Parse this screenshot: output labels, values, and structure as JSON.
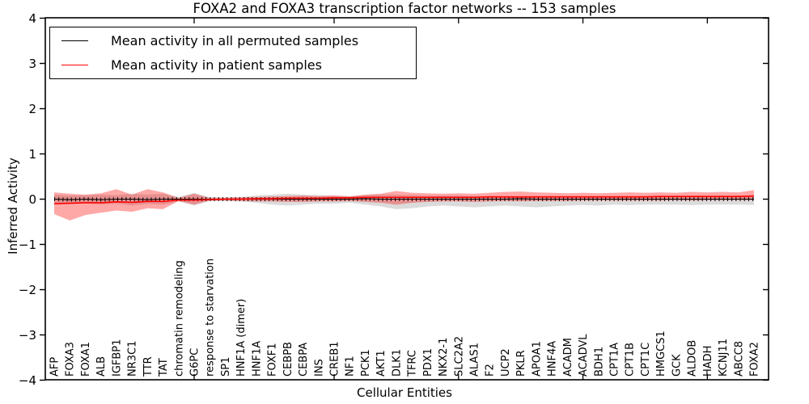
{
  "figure": {
    "title": "FOXA2 and FOXA3 transcription factor networks -- 153 samples",
    "xlabel": "Cellular Entities",
    "ylabel": "Inferred Activity"
  },
  "legend": {
    "position": "upper left",
    "entries": [
      {
        "label": "Mean activity in all permuted samples",
        "color": "#000000"
      },
      {
        "label": "Mean activity in patient samples",
        "color": "#ff0000"
      }
    ]
  },
  "chart_data": {
    "type": "line",
    "title": "FOXA2 and FOXA3 transcription factor networks -- 153 samples",
    "xlabel": "Cellular Entities",
    "ylabel": "Inferred Activity",
    "ylim": [
      -4,
      4
    ],
    "yticks": [
      -4,
      -3,
      -2,
      -1,
      0,
      1,
      2,
      3,
      4
    ],
    "grid": false,
    "legend_position": "upper left",
    "x_major_tick_indices": [
      9,
      18,
      26,
      34,
      42
    ],
    "categories": [
      "AFP",
      "FOXA3",
      "FOXA1",
      "ALB",
      "IGFBP1",
      "NR3C1",
      "TTR",
      "TAT",
      "chromatin remodeling",
      "G6PC",
      "response to starvation",
      "SP1",
      "HNF1A (dimer)",
      "HNF1A",
      "FOXF1",
      "CEBPB",
      "CEBPA",
      "INS",
      "CREB1",
      "NF1",
      "PCK1",
      "AKT1",
      "DLK1",
      "TFRC",
      "PDX1",
      "NKX2-1",
      "SLC2A2",
      "ALAS1",
      "F2",
      "UCP2",
      "PKLR",
      "APOA1",
      "HNF4A",
      "ACADM",
      "ACADVL",
      "BDH1",
      "CPT1A",
      "CPT1B",
      "CPT1C",
      "HMGCS1",
      "GCK",
      "ALDOB",
      "HADH",
      "KCNJ11",
      "ABCC8",
      "FOXA2"
    ],
    "series": [
      {
        "name": "Mean activity in all permuted samples",
        "color": "#000000",
        "style": "solid line with short vertical tick markers at each point",
        "values": [
          0,
          -0.01,
          0,
          -0.01,
          0,
          0,
          -0.01,
          0,
          0,
          0,
          0,
          0,
          0,
          0,
          0,
          0,
          0,
          0,
          0,
          0,
          0.01,
          0,
          0,
          0,
          0,
          0,
          0,
          0,
          0,
          0,
          0.01,
          0,
          0,
          0,
          0,
          0,
          0,
          0,
          0,
          0,
          0,
          0,
          0,
          0,
          0,
          0
        ]
      },
      {
        "name": "Mean activity in patient samples",
        "color": "#ff0000",
        "style": "solid line",
        "values": [
          -0.1,
          -0.09,
          -0.08,
          -0.08,
          -0.06,
          -0.07,
          -0.05,
          -0.05,
          -0.02,
          -0.02,
          -0.01,
          0,
          0,
          0.01,
          0.01,
          0.02,
          0.02,
          0.02,
          0.03,
          0.03,
          0.04,
          0.04,
          0.04,
          0.04,
          0.04,
          0.04,
          0.04,
          0.04,
          0.05,
          0.05,
          0.05,
          0.05,
          0.05,
          0.05,
          0.05,
          0.05,
          0.05,
          0.05,
          0.05,
          0.06,
          0.06,
          0.06,
          0.06,
          0.06,
          0.06,
          0.07
        ]
      }
    ],
    "bands": [
      {
        "name": "permuted-samples-range",
        "color": "rgba(90,90,90,0.22)",
        "upper": [
          0.1,
          0.08,
          0.09,
          0.1,
          0.09,
          0.12,
          0.1,
          0.12,
          0.05,
          0.14,
          0.04,
          0.04,
          0.05,
          0.08,
          0.1,
          0.12,
          0.1,
          0.09,
          0.08,
          0.07,
          0.09,
          0.1,
          0.1,
          0.09,
          0.08,
          0.08,
          0.08,
          0.07,
          0.07,
          0.06,
          0.06,
          0.06,
          0.06,
          0.05,
          0.05,
          0.05,
          0.05,
          0.05,
          0.05,
          0.05,
          0.05,
          0.05,
          0.05,
          0.05,
          0.05,
          0.06
        ],
        "lower": [
          -0.1,
          -0.08,
          -0.09,
          -0.12,
          -0.1,
          -0.14,
          -0.1,
          -0.12,
          -0.05,
          -0.14,
          -0.04,
          -0.04,
          -0.05,
          -0.08,
          -0.12,
          -0.14,
          -0.12,
          -0.1,
          -0.1,
          -0.08,
          -0.12,
          -0.16,
          -0.22,
          -0.2,
          -0.16,
          -0.14,
          -0.16,
          -0.18,
          -0.16,
          -0.14,
          -0.16,
          -0.18,
          -0.16,
          -0.14,
          -0.13,
          -0.14,
          -0.12,
          -0.13,
          -0.12,
          -0.12,
          -0.12,
          -0.13,
          -0.12,
          -0.12,
          -0.12,
          -0.13
        ]
      },
      {
        "name": "patient-samples-range",
        "color": "rgba(255,0,0,0.34)",
        "upper": [
          0.15,
          0.12,
          0.1,
          0.13,
          0.22,
          0.1,
          0.22,
          0.15,
          0.03,
          0.12,
          0.03,
          0.03,
          0.04,
          0.05,
          0.06,
          0.07,
          0.08,
          0.07,
          0.08,
          0.06,
          0.1,
          0.12,
          0.18,
          0.14,
          0.13,
          0.12,
          0.13,
          0.12,
          0.14,
          0.16,
          0.17,
          0.15,
          0.14,
          0.13,
          0.14,
          0.13,
          0.14,
          0.15,
          0.14,
          0.15,
          0.14,
          0.16,
          0.15,
          0.16,
          0.15,
          0.2
        ],
        "lower": [
          -0.33,
          -0.47,
          -0.35,
          -0.3,
          -0.25,
          -0.28,
          -0.2,
          -0.22,
          -0.04,
          -0.12,
          -0.03,
          -0.03,
          -0.04,
          -0.05,
          -0.05,
          -0.06,
          -0.06,
          -0.05,
          -0.05,
          -0.04,
          -0.06,
          -0.08,
          -0.12,
          -0.08,
          -0.06,
          -0.05,
          -0.05,
          -0.06,
          -0.05,
          -0.04,
          -0.05,
          -0.04,
          -0.04,
          -0.04,
          -0.03,
          -0.03,
          -0.03,
          -0.03,
          -0.03,
          -0.03,
          -0.02,
          -0.03,
          -0.02,
          -0.02,
          -0.02,
          -0.02
        ]
      }
    ]
  }
}
